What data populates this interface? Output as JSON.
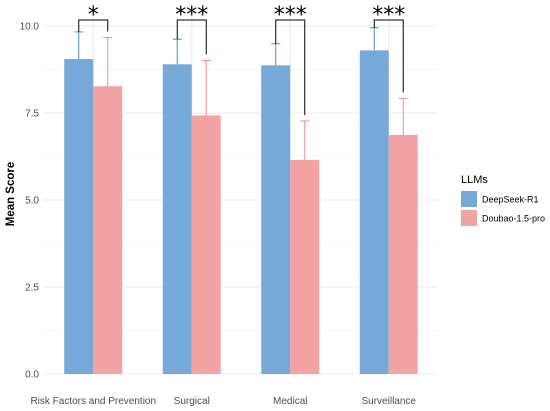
{
  "chart_data": {
    "type": "bar",
    "title": "",
    "xlabel": "",
    "ylabel": "Mean Score",
    "ylim": [
      0,
      10
    ],
    "yticks": [
      "0.0",
      "2.5",
      "5.0",
      "7.5",
      "10.0"
    ],
    "ytick_values": [
      0,
      2.5,
      5,
      7.5,
      10
    ],
    "categories": [
      "Risk Factors and Prevention",
      "Surgical",
      "Medical",
      "Surveillance"
    ],
    "series": [
      {
        "name": "DeepSeek-R1",
        "color": "#76a9d8",
        "error_color": "#4a8cc8",
        "values": [
          9.05,
          8.9,
          8.87,
          9.3
        ],
        "errors": [
          0.78,
          0.72,
          0.62,
          0.65
        ]
      },
      {
        "name": "Doubao-1.5-pro",
        "color": "#f4a3a5",
        "error_color": "#f08a8d",
        "values": [
          8.27,
          7.43,
          6.15,
          6.87
        ],
        "errors": [
          1.4,
          1.58,
          1.12,
          1.05
        ]
      }
    ],
    "significance": [
      "*",
      "***",
      "***",
      "***"
    ],
    "legend": {
      "title": "LLMs",
      "placement": "right"
    },
    "grid": true
  }
}
